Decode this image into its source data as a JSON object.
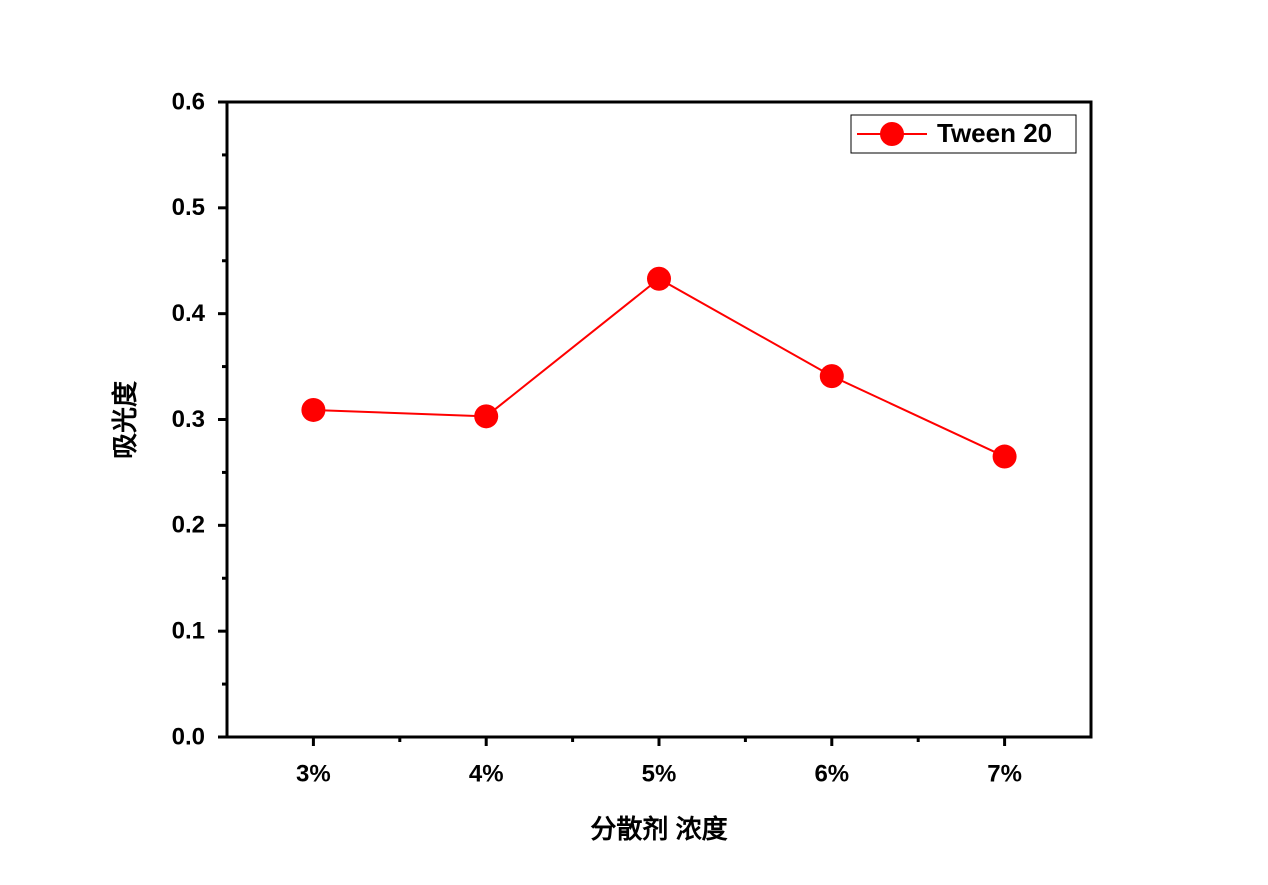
{
  "chart_data": {
    "type": "line",
    "x_label": "分散剂 浓度",
    "y_label": "吸光度",
    "categories": [
      "3%",
      "4%",
      "5%",
      "6%",
      "7%"
    ],
    "series": [
      {
        "name": "Tween 20",
        "color": "#ff0000",
        "values": [
          0.309,
          0.303,
          0.433,
          0.341,
          0.265
        ]
      }
    ],
    "ylim": [
      0,
      0.6
    ],
    "yticks": [
      {
        "value": 0,
        "label": "0.0"
      },
      0.1,
      0.2,
      0.3,
      0.4,
      0.5,
      0.6
    ],
    "legend": "upper right"
  }
}
